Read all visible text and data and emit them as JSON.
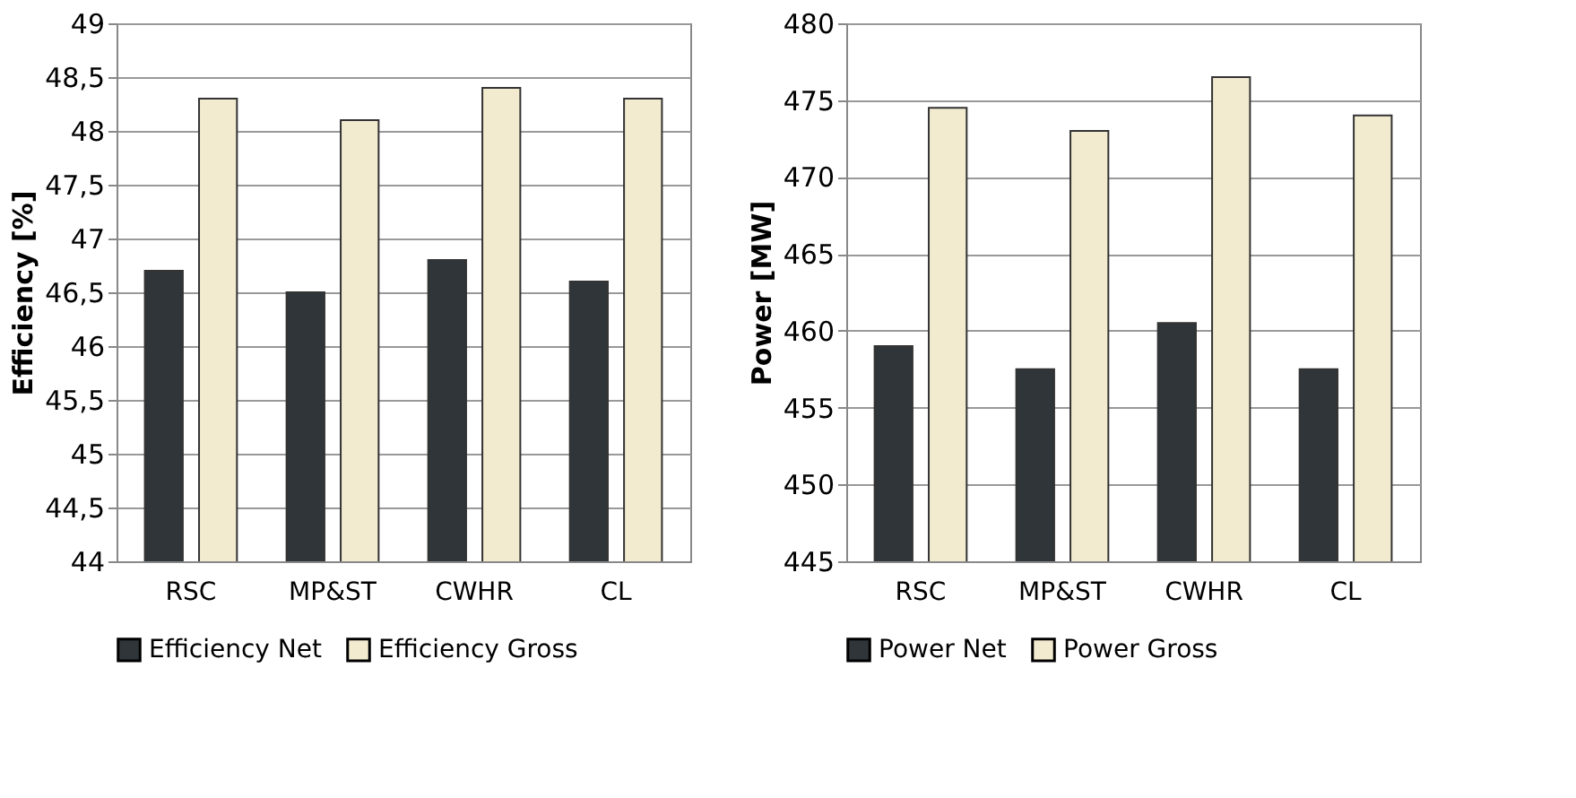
{
  "chart_data": [
    {
      "type": "bar",
      "ylabel": "Efficiency [%]",
      "categories": [
        "RSC",
        "MP&ST",
        "CWHR",
        "CL"
      ],
      "series": [
        {
          "name": "Efficiency Net",
          "color": "#2f3538",
          "values": [
            46.7,
            46.5,
            46.8,
            46.6
          ]
        },
        {
          "name": "Efficiency Gross",
          "color": "#f3ebd0",
          "values": [
            48.3,
            48.1,
            48.4,
            48.3
          ]
        }
      ],
      "ylim": [
        44,
        49
      ],
      "yticks": [
        44,
        {
          "value": 44.5,
          "label": "44,5"
        },
        45,
        {
          "value": 45.5,
          "label": "45,5"
        },
        46,
        {
          "value": 46.5,
          "label": "46,5"
        },
        47,
        {
          "value": 47.5,
          "label": "47,5"
        },
        48,
        {
          "value": 48.5,
          "label": "48,5"
        },
        49
      ],
      "grid": "y",
      "legend": "bottom"
    },
    {
      "type": "bar",
      "ylabel": "Power [MW]",
      "categories": [
        "RSC",
        "MP&ST",
        "CWHR",
        "CL"
      ],
      "series": [
        {
          "name": "Power Net",
          "color": "#2f3538",
          "values": [
            459,
            457.5,
            460.5,
            457.5
          ]
        },
        {
          "name": "Power Gross",
          "color": "#f3ebd0",
          "values": [
            474.5,
            473,
            476.5,
            474
          ]
        }
      ],
      "ylim": [
        445,
        480
      ],
      "yticks": [
        445,
        450,
        455,
        460,
        465,
        470,
        475,
        480
      ],
      "grid": "y",
      "legend": "bottom"
    }
  ]
}
